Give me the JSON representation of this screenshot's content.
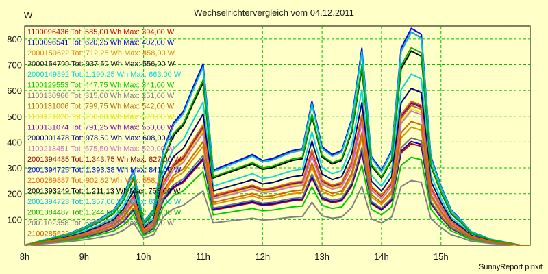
{
  "chart_data": {
    "type": "line",
    "title": "Wechselrichtervergleich vom 04.12.2011",
    "ylabel": "W",
    "xlabel": "",
    "ylim": [
      0,
      850
    ],
    "xlim": [
      8,
      16.5
    ],
    "grid": true,
    "legend_placement": "top-left",
    "y_ticks": [
      "100",
      "200",
      "300",
      "400",
      "500",
      "600",
      "700",
      "800"
    ],
    "x_ticks": [
      "8h",
      "9h",
      "10h",
      "11h",
      "12h",
      "13h",
      "14h",
      "15h"
    ],
    "x": [
      8.0,
      8.25,
      8.5,
      8.75,
      9.0,
      9.25,
      9.5,
      9.67,
      9.83,
      10.0,
      10.17,
      10.33,
      10.5,
      10.67,
      10.83,
      11.0,
      11.17,
      11.33,
      11.5,
      11.67,
      11.83,
      12.0,
      12.17,
      12.33,
      12.5,
      12.67,
      12.83,
      13.0,
      13.17,
      13.33,
      13.5,
      13.67,
      13.83,
      14.0,
      14.17,
      14.33,
      14.5,
      14.67,
      14.83,
      15.0,
      15.17,
      15.33,
      15.5,
      15.67,
      15.83,
      16.0,
      16.17,
      16.33,
      16.5
    ],
    "base_shape": [
      0,
      2,
      4,
      6,
      9,
      13,
      18,
      26,
      38,
      12,
      18,
      48,
      62,
      68,
      80,
      92,
      38,
      40,
      42,
      44,
      46,
      43,
      44,
      46,
      48,
      49,
      73,
      50,
      46,
      48,
      64,
      100,
      45,
      38,
      48,
      100,
      110,
      107,
      45,
      30,
      18,
      13,
      7,
      5,
      3,
      2,
      1,
      0,
      0
    ],
    "series": [
      {
        "name": "1100096436",
        "label": "1100096436 Tot: 585,00 Wh Max: 394,00 W",
        "color": "#cc0000",
        "max": 394
      },
      {
        "name": "1100096541",
        "label": "1100096541 Tot: 620,25 Wh Max: 402,00 W",
        "color": "#0000cc",
        "max": 402
      },
      {
        "name": "2000150622",
        "label": "2000150622 Tot: 712,25 Wh Max: 458,00 W",
        "color": "#e08a00",
        "max": 458
      },
      {
        "name": "2000154799",
        "label": "2000154799 Tot: 937,50 Wh Max: 556,00 W",
        "color": "#222222",
        "max": 556
      },
      {
        "name": "2000149892",
        "label": "2000149892 Tot: 1.190,25 Wh Max: 663,00 W",
        "color": "#00d8e8",
        "max": 663
      },
      {
        "name": "1100129553",
        "label": "1100129553 Tot: 447,75 Wh Max: 341,00 W",
        "color": "#00cc00",
        "max": 341
      },
      {
        "name": "1100130966",
        "label": "1100130966 Tot: 315,00 Wh Max: 251,00 W",
        "color": "#808080",
        "max": 251
      },
      {
        "name": "1100131006",
        "label": "1100131006 Tot: 799,75 Wh Max: 542,00 W",
        "color": "#b07000",
        "max": 542
      },
      {
        "name": "1100131020",
        "label": "1100131020 Tot: 766,00 Wh Max: 528,00 W",
        "color": "#e8e800",
        "max": 528
      },
      {
        "name": "1100131074",
        "label": "1100131074 Tot: 791,25 Wh Max: 550,00 W",
        "color": "#8000a0",
        "max": 550
      },
      {
        "name": "2000001478",
        "label": "2000001478 Tot: 978,50 Wh Max: 608,00 W",
        "color": "#000080",
        "max": 608
      },
      {
        "name": "1100213451",
        "label": "1100213451 Tot: 675,50 Wh Max: 520,00 W",
        "color": "#d070d0",
        "max": 520
      },
      {
        "name": "2001394485",
        "label": "2001394485 Tot: 1.343,75 Wh Max: 827,00 W",
        "color": "#990000",
        "max": 827
      },
      {
        "name": "2001394725",
        "label": "2001394725 Tot: 1.393,38 Wh Max: 841,00 W",
        "color": "#0000ee",
        "max": 841
      },
      {
        "name": "2100289887",
        "label": "2100289887 Tot: 902,62 Wh Max: 558,00 W",
        "color": "#ee6600",
        "max": 558
      },
      {
        "name": "2001393249",
        "label": "2001393249 Tot: 1.211,13 Wh Max: 753,00 W",
        "color": "#000000",
        "max": 753
      },
      {
        "name": "2001394723",
        "label": "2001394723 Tot: 1.357,00 Wh Max: 826,00 W",
        "color": "#00c0e0",
        "max": 826
      },
      {
        "name": "2001384487",
        "label": "2001384487 Tot: 1.244,88 Wh Max: 766,00 W",
        "color": "#00b000",
        "max": 766
      },
      {
        "name": "2001102358",
        "label": "2001102358 Tot: 655,25 Wh Max: 416,00 W",
        "color": "#707070",
        "max": 416
      },
      {
        "name": "2100285622",
        "label": "2100285622",
        "color": "#cc6600",
        "max": 480
      }
    ]
  },
  "footer": {
    "credit": "SunnyReport pinxit"
  },
  "colors": {
    "background": "#ffffc8",
    "plot_background": "#ffffc8",
    "grid": "#00c000",
    "frame": "#000000"
  }
}
